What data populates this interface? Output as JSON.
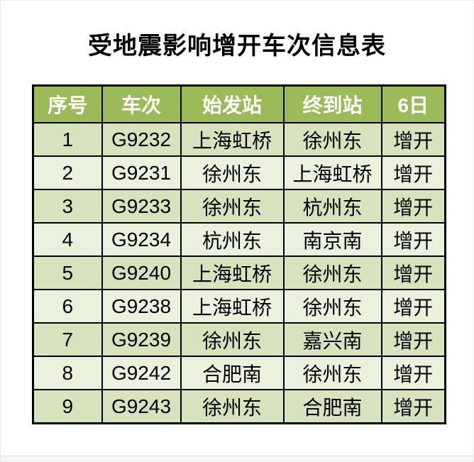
{
  "title": "受地震影响增开车次信息表",
  "table": {
    "headers": [
      "序号",
      "车次",
      "始发站",
      "终到站",
      "6日"
    ],
    "rows": [
      {
        "no": "1",
        "train": "G9232",
        "from": "上海虹桥",
        "to": "徐州东",
        "status": "增开"
      },
      {
        "no": "2",
        "train": "G9231",
        "from": "徐州东",
        "to": "上海虹桥",
        "status": "增开"
      },
      {
        "no": "3",
        "train": "G9233",
        "from": "徐州东",
        "to": "杭州东",
        "status": "增开"
      },
      {
        "no": "4",
        "train": "G9234",
        "from": "杭州东",
        "to": "南京南",
        "status": "增开"
      },
      {
        "no": "5",
        "train": "G9240",
        "from": "上海虹桥",
        "to": "徐州东",
        "status": "增开"
      },
      {
        "no": "6",
        "train": "G9238",
        "from": "上海虹桥",
        "to": "徐州东",
        "status": "增开"
      },
      {
        "no": "7",
        "train": "G9239",
        "from": "徐州东",
        "to": "嘉兴南",
        "status": "增开"
      },
      {
        "no": "8",
        "train": "G9242",
        "from": "合肥南",
        "to": "徐州东",
        "status": "增开"
      },
      {
        "no": "9",
        "train": "G9243",
        "from": "徐州东",
        "to": "合肥南",
        "status": "增开"
      }
    ]
  },
  "colors": {
    "header_bg": "#9BBB59",
    "header_text": "#FFFFFF",
    "row_odd_bg": "#D6E3BC",
    "row_even_bg": "#EAF1DD",
    "border": "#000000",
    "text": "#000000"
  }
}
